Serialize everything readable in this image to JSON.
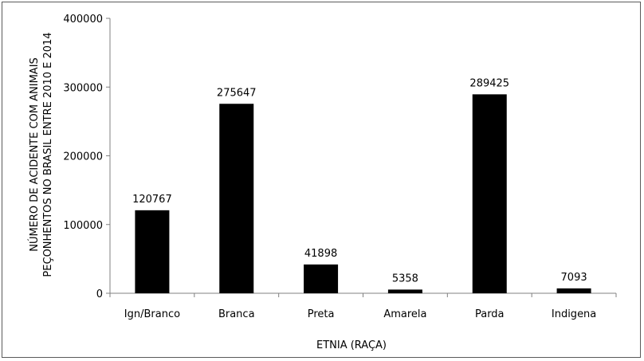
{
  "chart_data": {
    "type": "bar",
    "categories": [
      "Ign/Branco",
      "Branca",
      "Preta",
      "Amarela",
      "Parda",
      "Indigena"
    ],
    "values": [
      120767,
      275647,
      41898,
      5358,
      289425,
      7093
    ],
    "data_labels": [
      "120767",
      "275647",
      "41898",
      "5358",
      "289425",
      "7093"
    ],
    "xlabel": "ETNIA (RAÇA)",
    "ylabel_lines": [
      "NÚMERO DE ACIDENTE COM ANIMAIS",
      "PEÇONHENTOS NO BRASIL ENTRE 2010 E 2014"
    ],
    "ylim": [
      0,
      400000
    ],
    "yticks": [
      0,
      100000,
      200000,
      300000,
      400000
    ],
    "ytick_labels": [
      "0",
      "100000",
      "200000",
      "300000",
      "400000"
    ],
    "bar_color": "#000000",
    "grid": false,
    "legend": "none"
  }
}
